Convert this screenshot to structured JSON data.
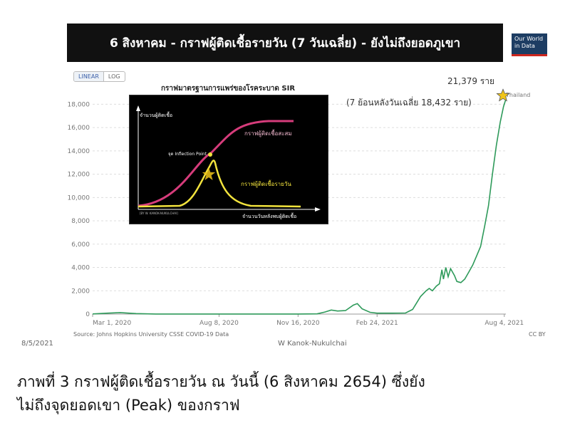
{
  "header": {
    "title": "6 สิงหาคม - กราฟผู้ติดเชื้อรายวัน (7 วันเฉลี่ย) - ยังไม่ถึงยอดภูเขา",
    "logo_line1": "Our World",
    "logo_line2": "in Data"
  },
  "scale_toggle": {
    "linear": "LINEAR",
    "log": "LOG"
  },
  "annotations": {
    "peak_value": "21,379 ราย",
    "avg_note": "(7 ย้อนหลังวันเฉลี่ย 18,432 ราย)",
    "series_label": "Thailand"
  },
  "inset": {
    "title": "กราฟมาตรฐานการแพร่ของโรคระบาด SIR",
    "y_label": "จำนวนผู้ติดเชื้อ",
    "x_label": "จำนวนวันหลังพบผู้ติดเชื้อ",
    "cumulative_label": "กราฟผู้ติดเชื้อสะสม",
    "daily_label": "กราฟผู้ติดเชื้อรายวัน",
    "inflection_label": "จุด Inflection Point",
    "credit": "[BY W. KANOK-NUKULCHAI]"
  },
  "footer": {
    "source": "Source: Johns Hopkins University CSSE COVID-19 Data",
    "author": "W Kanok-Nukulchai",
    "license": "CC BY",
    "page_date": "8/5/2021"
  },
  "caption": {
    "line1": "ภาพที่ 3 กราฟผู้ติดเชื้อรายวัน ณ วันนี้ (6 สิงหาคม 2654) ซึ่งยัง",
    "line2": "ไม่ถึงจุดยอดเขา (Peak) ของกราฟ"
  },
  "colors": {
    "line": "#2e9a5a",
    "inset_pink": "#d63c7b",
    "inset_yellow": "#f2e33d",
    "star": "#f0c419"
  },
  "chart_data": {
    "type": "line",
    "title": "6 สิงหาคม - กราฟผู้ติดเชื้อรายวัน (7 วันเฉลี่ย) - ยังไม่ถึงยอดภูเขา",
    "xlabel": "",
    "ylabel": "",
    "x_ticks": [
      "Mar 1, 2020",
      "Aug 8, 2020",
      "Nov 16, 2020",
      "Feb 24, 2021",
      "Aug 4, 2021"
    ],
    "y_ticks": [
      "0",
      "2,000",
      "4,000",
      "6,000",
      "8,000",
      "10,000",
      "12,000",
      "14,000",
      "16,000",
      "18,000"
    ],
    "ylim": [
      0,
      19000
    ],
    "xlim": [
      "2020-03-01",
      "2021-08-06"
    ],
    "grid": true,
    "series": [
      {
        "name": "Thailand",
        "points": [
          [
            "2020-03-01",
            10
          ],
          [
            "2020-03-20",
            80
          ],
          [
            "2020-04-05",
            130
          ],
          [
            "2020-04-25",
            40
          ],
          [
            "2020-05-20",
            5
          ],
          [
            "2020-08-08",
            5
          ],
          [
            "2020-11-16",
            8
          ],
          [
            "2020-12-10",
            20
          ],
          [
            "2020-12-20",
            180
          ],
          [
            "2020-12-28",
            350
          ],
          [
            "2021-01-05",
            260
          ],
          [
            "2021-01-15",
            300
          ],
          [
            "2021-01-25",
            770
          ],
          [
            "2021-01-30",
            900
          ],
          [
            "2021-02-05",
            450
          ],
          [
            "2021-02-15",
            150
          ],
          [
            "2021-02-24",
            80
          ],
          [
            "2021-03-15",
            80
          ],
          [
            "2021-04-01",
            90
          ],
          [
            "2021-04-10",
            400
          ],
          [
            "2021-04-20",
            1500
          ],
          [
            "2021-04-27",
            2000
          ],
          [
            "2021-05-01",
            2200
          ],
          [
            "2021-05-05",
            2000
          ],
          [
            "2021-05-10",
            2400
          ],
          [
            "2021-05-14",
            2600
          ],
          [
            "2021-05-17",
            3800
          ],
          [
            "2021-05-19",
            3000
          ],
          [
            "2021-05-22",
            4000
          ],
          [
            "2021-05-25",
            3200
          ],
          [
            "2021-05-28",
            3900
          ],
          [
            "2021-06-02",
            3300
          ],
          [
            "2021-06-05",
            2800
          ],
          [
            "2021-06-10",
            2700
          ],
          [
            "2021-06-15",
            3000
          ],
          [
            "2021-06-20",
            3600
          ],
          [
            "2021-06-25",
            4200
          ],
          [
            "2021-06-30",
            5000
          ],
          [
            "2021-07-05",
            5800
          ],
          [
            "2021-07-10",
            7500
          ],
          [
            "2021-07-15",
            9300
          ],
          [
            "2021-07-20",
            12000
          ],
          [
            "2021-07-25",
            14500
          ],
          [
            "2021-07-30",
            16500
          ],
          [
            "2021-08-03",
            17800
          ],
          [
            "2021-08-06",
            18432
          ]
        ]
      }
    ]
  }
}
